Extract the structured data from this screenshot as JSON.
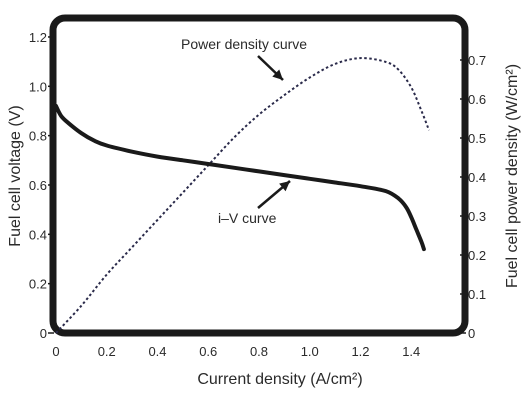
{
  "chart_data": {
    "type": "line",
    "title": "",
    "xlabel": "Current density (A/cm²)",
    "ylabel_left": "Fuel cell voltage (V)",
    "ylabel_right": "Fuel cell power density (W/cm²)",
    "xlim": [
      0,
      1.6
    ],
    "ylim_left": [
      0,
      1.2
    ],
    "ylim_right": [
      0,
      0.75
    ],
    "x_ticks": [
      "0",
      "0.2",
      "0.4",
      "0.6",
      "0.8",
      "1.0",
      "1.2",
      "1.4"
    ],
    "y_ticks_left": [
      "0",
      "0.2",
      "0.4",
      "0.6",
      "0.8",
      "1.0",
      "1.2"
    ],
    "y_ticks_right": [
      "0",
      "0.1",
      "0.2",
      "0.3",
      "0.4",
      "0.5",
      "0.6",
      "0.7"
    ],
    "grid": false,
    "series": [
      {
        "name": "i–V curve",
        "axis": "left",
        "style": "solid",
        "x": [
          0,
          0.02,
          0.05,
          0.1,
          0.15,
          0.2,
          0.3,
          0.4,
          0.5,
          0.6,
          0.7,
          0.8,
          0.9,
          1.0,
          1.1,
          1.2,
          1.3,
          1.35,
          1.38,
          1.4,
          1.42,
          1.44,
          1.45
        ],
        "y": [
          0.92,
          0.88,
          0.85,
          0.81,
          0.78,
          0.76,
          0.735,
          0.715,
          0.7,
          0.685,
          0.67,
          0.655,
          0.64,
          0.625,
          0.61,
          0.595,
          0.575,
          0.545,
          0.51,
          0.47,
          0.42,
          0.37,
          0.34
        ]
      },
      {
        "name": "Power density curve",
        "axis": "right",
        "style": "dotted",
        "x": [
          0,
          0.1,
          0.2,
          0.3,
          0.4,
          0.5,
          0.6,
          0.7,
          0.8,
          0.9,
          1.0,
          1.1,
          1.2,
          1.3,
          1.35,
          1.4,
          1.44,
          1.47
        ],
        "y": [
          0,
          0.07,
          0.15,
          0.22,
          0.29,
          0.36,
          0.43,
          0.5,
          0.56,
          0.61,
          0.655,
          0.69,
          0.705,
          0.695,
          0.675,
          0.63,
          0.57,
          0.52
        ]
      }
    ],
    "annotations": [
      {
        "text": "Power density curve",
        "points_to_x": 0.92,
        "series": "Power density curve"
      },
      {
        "text": "i–V curve",
        "points_to_x": 0.93,
        "series": "i–V curve"
      }
    ]
  }
}
